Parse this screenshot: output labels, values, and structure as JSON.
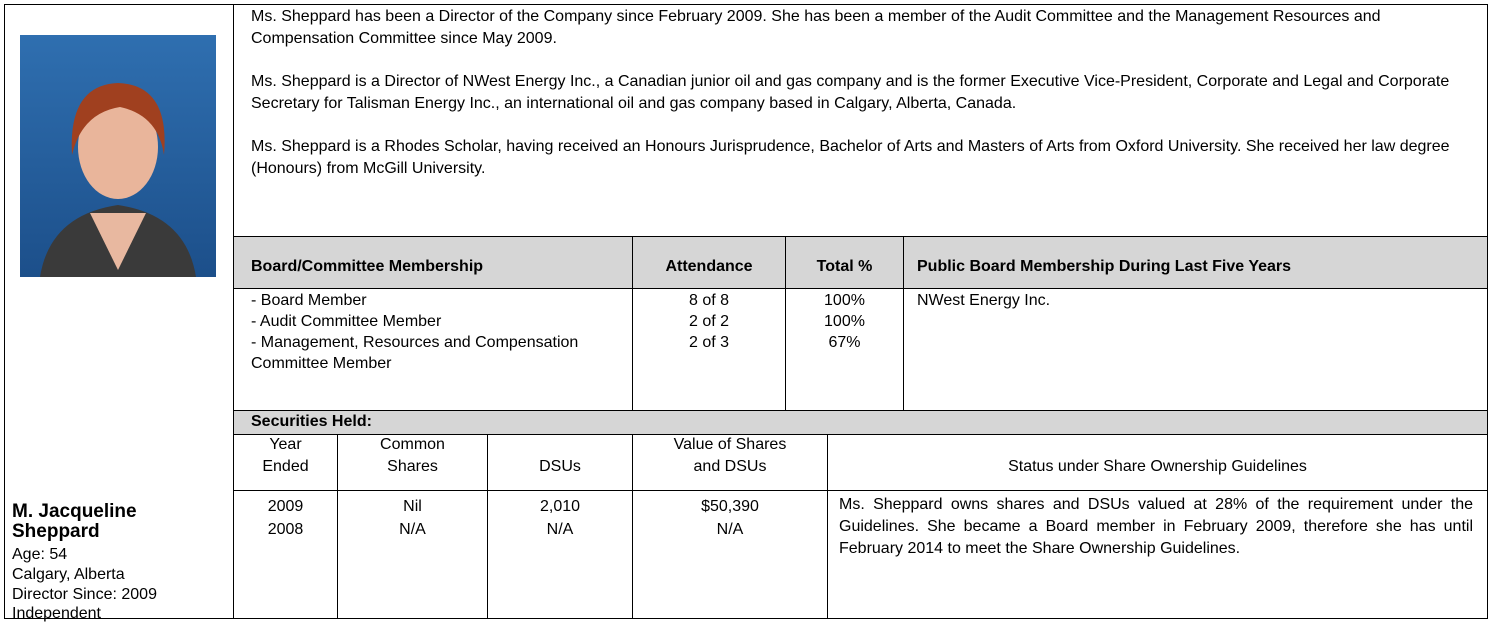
{
  "profile": {
    "name": "M. Jacqueline Sheppard",
    "details": [
      "Age: 54",
      "Calgary, Alberta",
      "Director Since: 2009",
      "Independent"
    ]
  },
  "biography": [
    "Ms. Sheppard has been a Director of the Company since February 2009.  She has been a member of the Audit Committee and the Management Resources and Compensation Committee since May 2009.",
    "Ms. Sheppard is a Director of NWest Energy Inc., a Canadian junior oil and gas company and is the former Executive Vice-President, Corporate and Legal and Corporate Secretary for Talisman Energy Inc., an international oil and gas company based in Calgary, Alberta, Canada.",
    "Ms. Sheppard is a Rhodes Scholar, having received an Honours Jurisprudence, Bachelor of Arts and Masters of Arts from Oxford University.  She received her law degree (Honours) from McGill University."
  ],
  "membership": {
    "headers": [
      "Board/Committee Membership",
      "Attendance",
      "Total %",
      "Public Board Membership During Last Five Years"
    ],
    "rows": [
      [
        "- Board Member",
        "8 of 8",
        "100%"
      ],
      [
        "- Audit Committee Member",
        "2 of 2",
        "100%"
      ],
      [
        "- Management, Resources and Compensation Committee Member",
        "2 of 3",
        "67%"
      ]
    ],
    "public_boards": [
      "NWest Energy Inc."
    ]
  },
  "securities": {
    "title": "Securities Held:",
    "headers": [
      "Year Ended",
      "Common Shares",
      "DSUs",
      "Value of Shares and DSUs",
      "Status under Share Ownership Guidelines"
    ],
    "rows": [
      [
        "2009",
        "Nil",
        "2,010",
        "$50,390"
      ],
      [
        "2008",
        "N/A",
        "N/A",
        "N/A"
      ]
    ],
    "status": "Ms. Sheppard owns shares and DSUs valued at 28% of the requirement under the Guidelines.  She became a Board member in February 2009, therefore she has until February 2014 to meet the Share Ownership Guidelines."
  }
}
